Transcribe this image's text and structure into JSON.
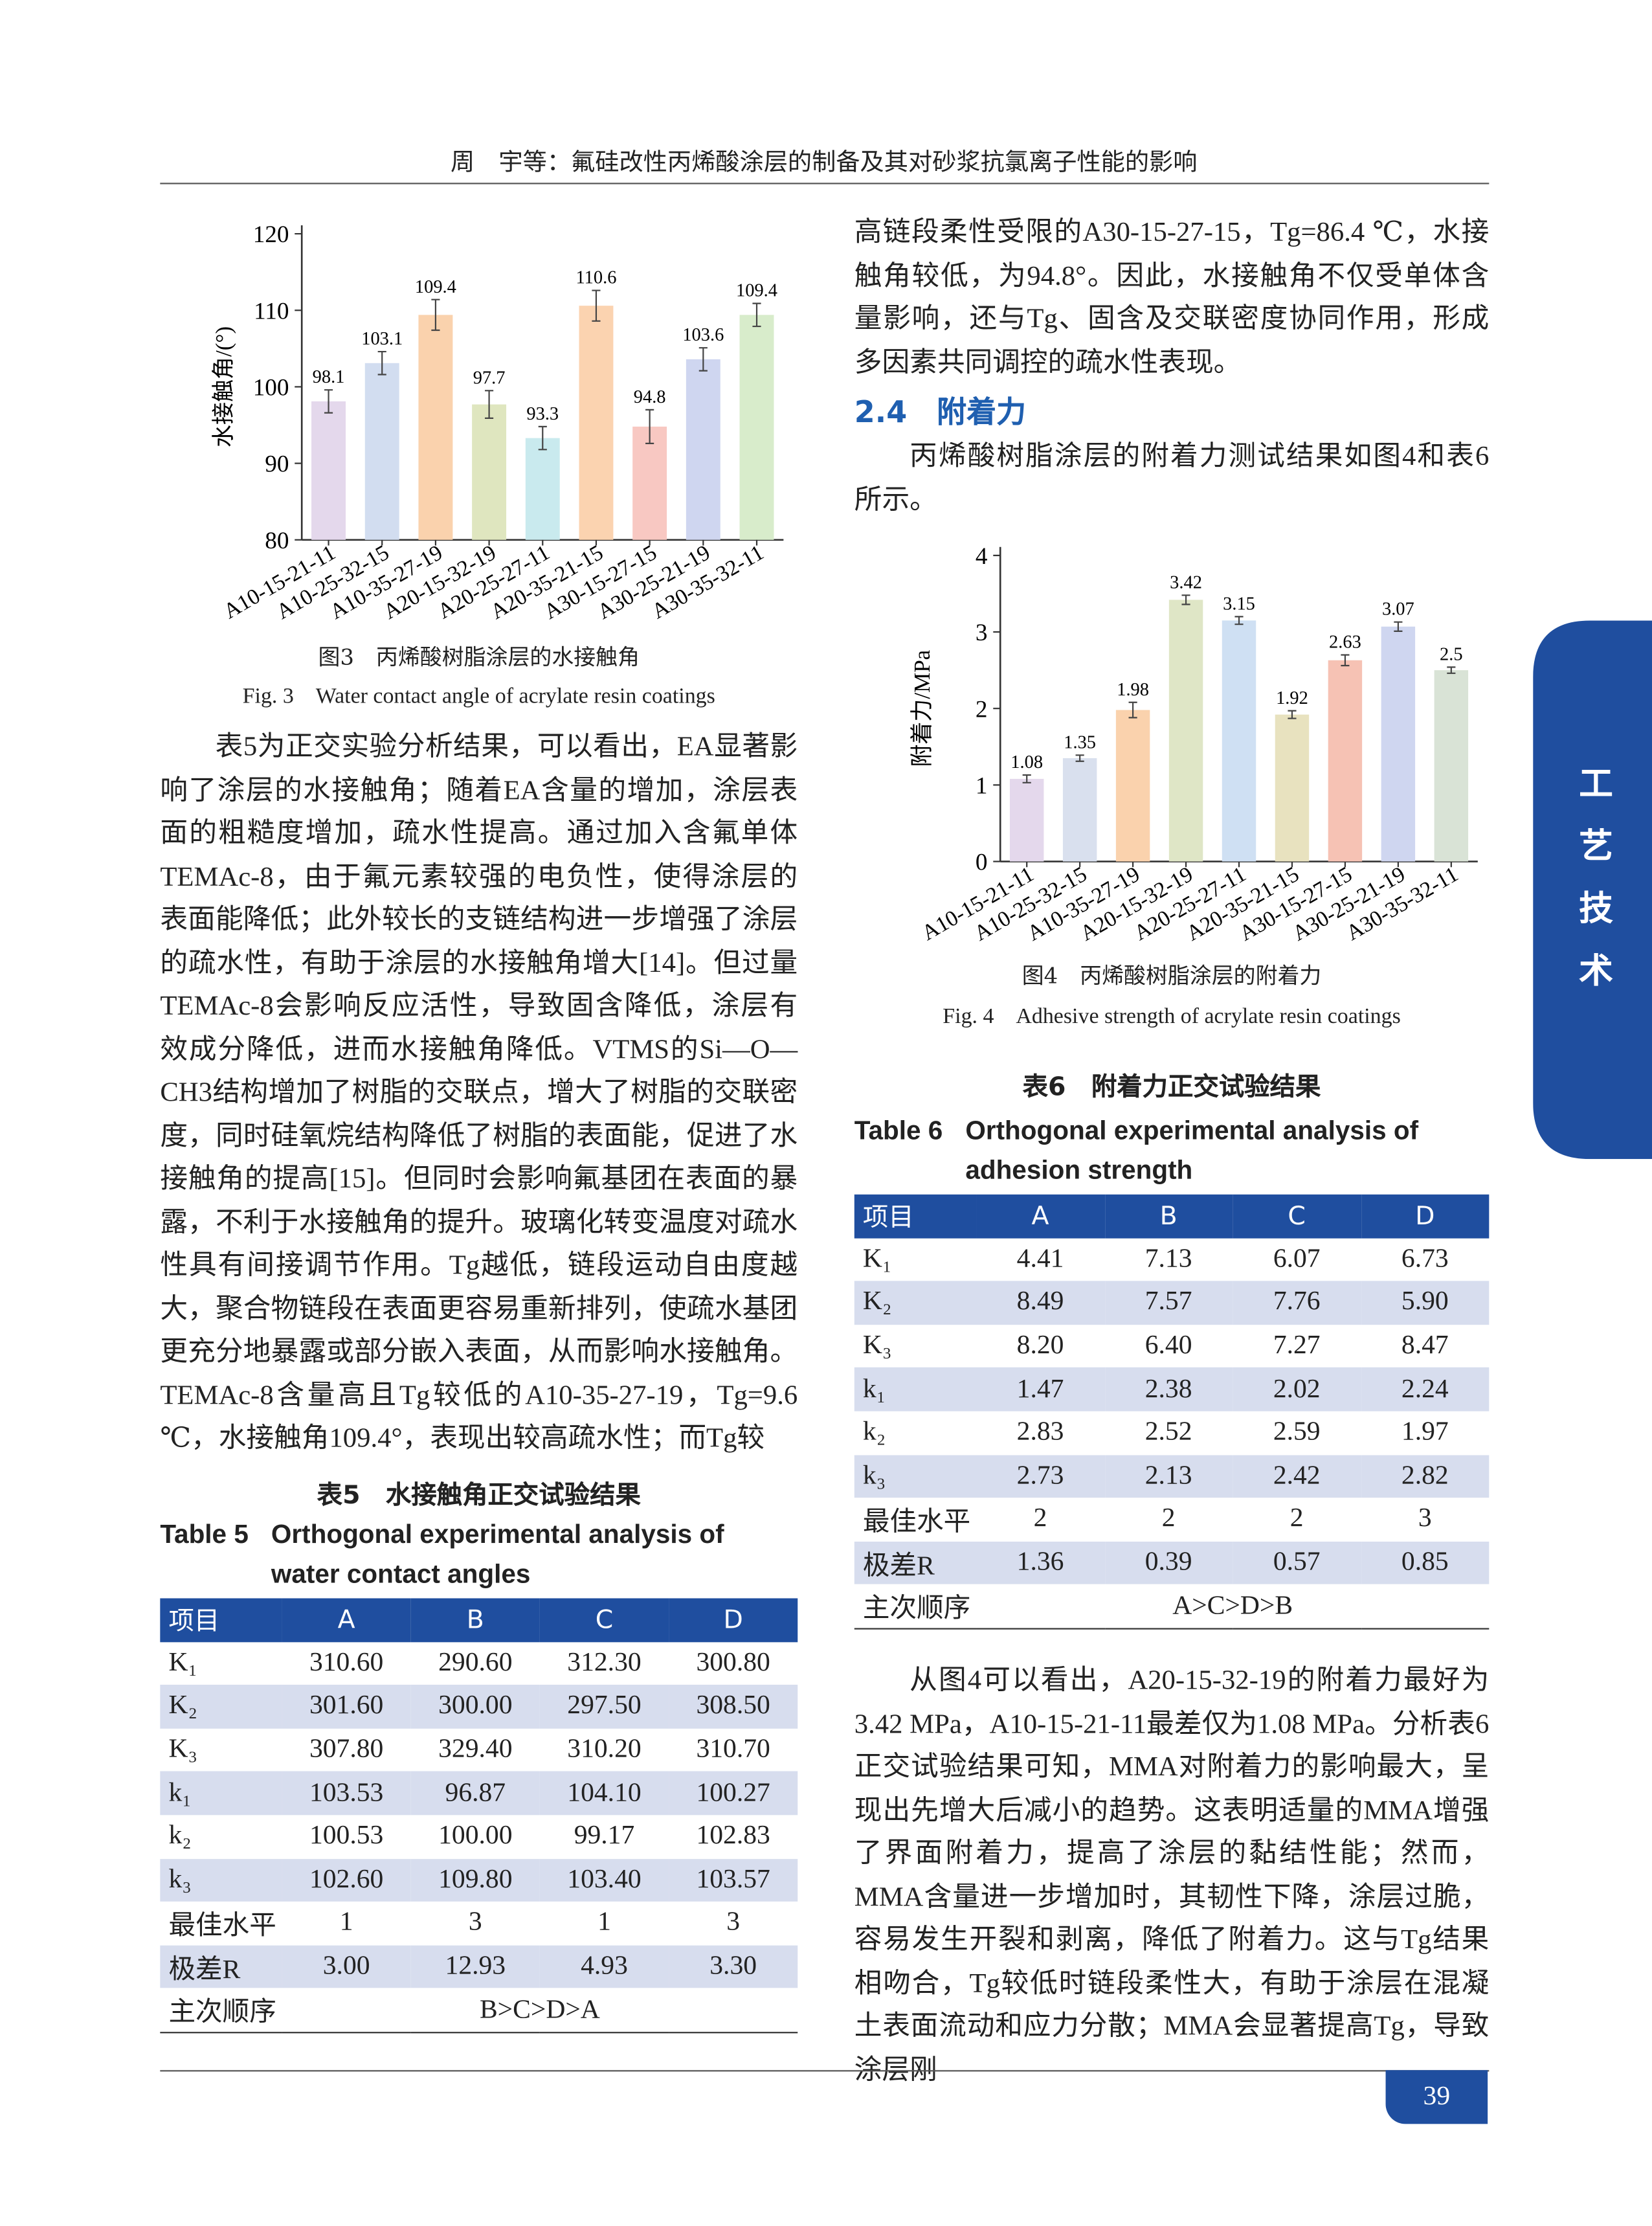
{
  "header": {
    "running_title": "周　宇等：氟硅改性丙烯酸涂层的制备及其对砂浆抗氯离子性能的影响",
    "page_number": "39",
    "side_tab": "工艺技术"
  },
  "chart_data": [
    {
      "type": "bar",
      "y_label": "水接触角/(°)",
      "caption_cn": "图3　丙烯酸树脂涂层的水接触角",
      "caption_en": "Fig. 3　Water contact angle of acrylate resin coatings",
      "categories": [
        "A10-15-21-11",
        "A10-25-32-15",
        "A10-35-27-19",
        "A20-15-32-19",
        "A20-25-27-11",
        "A20-35-21-15",
        "A30-15-27-15",
        "A30-25-21-19",
        "A30-35-32-11"
      ],
      "values": [
        98.1,
        103.1,
        109.4,
        97.7,
        93.3,
        110.6,
        94.8,
        103.6,
        109.4
      ],
      "errors": [
        1.5,
        1.5,
        2.0,
        1.8,
        1.5,
        2.0,
        2.2,
        1.5,
        1.5
      ],
      "colors": [
        "#e4d8ec",
        "#d2ddf0",
        "#fad2ad",
        "#dfe6bf",
        "#c9eaee",
        "#fbd3b0",
        "#f8c8c2",
        "#cfd6f0",
        "#d8eccb"
      ],
      "ylim": [
        80,
        120
      ],
      "yticks": [
        80,
        90,
        100,
        110,
        120
      ],
      "grid": false
    },
    {
      "type": "bar",
      "y_label": "附着力/MPa",
      "caption_cn": "图4　丙烯酸树脂涂层的附着力",
      "caption_en": "Fig. 4　Adhesive strength of acrylate resin coatings",
      "categories": [
        "A10-15-21-11",
        "A10-25-32-15",
        "A10-35-27-19",
        "A20-15-32-19",
        "A20-25-27-11",
        "A20-35-21-15",
        "A30-15-27-15",
        "A30-25-21-19",
        "A30-35-32-11"
      ],
      "values": [
        1.08,
        1.35,
        1.98,
        3.42,
        3.15,
        1.92,
        2.63,
        3.07,
        2.5
      ],
      "errors": [
        0.05,
        0.04,
        0.1,
        0.06,
        0.05,
        0.05,
        0.07,
        0.06,
        0.04
      ],
      "colors": [
        "#e4d8ec",
        "#d9e0ee",
        "#fad2ad",
        "#dfe6c6",
        "#cfe0f3",
        "#e8e2bf",
        "#f6c2b4",
        "#cfd6f0",
        "#d9e3d6"
      ],
      "ylim": [
        0,
        4
      ],
      "yticks": [
        0,
        1,
        2,
        3,
        4
      ],
      "grid": false
    }
  ],
  "body": {
    "left_paragraph": "表5为正交实验分析结果，可以看出，EA显著影响了涂层的水接触角；随着EA含量的增加，涂层表面的粗糙度增加，疏水性提高。通过加入含氟单体TEMAc-8，由于氟元素较强的电负性，使得涂层的表面能降低；此外较长的支链结构进一步增强了涂层的疏水性，有助于涂层的水接触角增大[14]。但过量TEMAc-8会影响反应活性，导致固含降低，涂层有效成分降低，进而水接触角降低。VTMS的Si—O—CH3结构增加了树脂的交联点，增大了树脂的交联密度，同时硅氧烷结构降低了树脂的表面能，促进了水接触角的提高[15]。但同时会影响氟基团在表面的暴露，不利于水接触角的提升。玻璃化转变温度对疏水性具有间接调节作用。Tg越低，链段运动自由度越大，聚合物链段在表面更容易重新排列，使疏水基团更充分地暴露或部分嵌入表面，从而影响水接触角。TEMAc-8含量高且Tg较低的A10-35-27-19，Tg=9.6 ℃，水接触角109.4°，表现出较高疏水性；而Tg较",
    "right_paragraph_top": "高链段柔性受限的A30-15-27-15，Tg=86.4 ℃，水接触角较低，为94.8°。因此，水接触角不仅受单体含量影响，还与Tg、固含及交联密度协同作用，形成多因素共同调控的疏水性表现。",
    "section_heading": "2.4　附着力",
    "section_paragraph": "丙烯酸树脂涂层的附着力测试结果如图4和表6所示。",
    "right_paragraph_bottom": "从图4可以看出，A20-15-32-19的附着力最好为3.42 MPa，A10-15-21-11最差仅为1.08 MPa。分析表6正交试验结果可知，MMA对附着力的影响最大，呈现出先增大后减小的趋势。这表明适量的MMA增强了界面附着力，提高了涂层的黏结性能；然而，MMA含量进一步增加时，其韧性下降，涂层过脆，容易发生开裂和剥离，降低了附着力。这与Tg结果相吻合，Tg较低时链段柔性大，有助于涂层在混凝土表面流动和应力分散；MMA会显著提高Tg，导致涂层刚"
  },
  "tables": [
    {
      "title_cn": "表5　水接触角正交试验结果",
      "title_en_label": "Table 5",
      "title_en": "Orthogonal experimental analysis of water contact angles",
      "header": [
        "项目",
        "A",
        "B",
        "C",
        "D"
      ],
      "rows": [
        [
          "K₁",
          "310.60",
          "290.60",
          "312.30",
          "300.80"
        ],
        [
          "K₂",
          "301.60",
          "300.00",
          "297.50",
          "308.50"
        ],
        [
          "K₃",
          "307.80",
          "329.40",
          "310.20",
          "310.70"
        ],
        [
          "k₁",
          "103.53",
          "96.87",
          "104.10",
          "100.27"
        ],
        [
          "k₂",
          "100.53",
          "100.00",
          "99.17",
          "102.83"
        ],
        [
          "k₃",
          "102.60",
          "109.80",
          "103.40",
          "103.57"
        ],
        [
          "最佳水平",
          "1",
          "3",
          "1",
          "3"
        ],
        [
          "极差R",
          "3.00",
          "12.93",
          "4.93",
          "3.30"
        ],
        [
          "主次顺序",
          "B>C>D>A"
        ]
      ]
    },
    {
      "title_cn": "表6　附着力正交试验结果",
      "title_en_label": "Table 6",
      "title_en": "Orthogonal experimental analysis of adhesion strength",
      "header": [
        "项目",
        "A",
        "B",
        "C",
        "D"
      ],
      "rows": [
        [
          "K₁",
          "4.41",
          "7.13",
          "6.07",
          "6.73"
        ],
        [
          "K₂",
          "8.49",
          "7.57",
          "7.76",
          "5.90"
        ],
        [
          "K₃",
          "8.20",
          "6.40",
          "7.27",
          "8.47"
        ],
        [
          "k₁",
          "1.47",
          "2.38",
          "2.02",
          "2.24"
        ],
        [
          "k₂",
          "2.83",
          "2.52",
          "2.59",
          "1.97"
        ],
        [
          "k₃",
          "2.73",
          "2.13",
          "2.42",
          "2.82"
        ],
        [
          "最佳水平",
          "2",
          "2",
          "2",
          "3"
        ],
        [
          "极差R",
          "1.36",
          "0.39",
          "0.57",
          "0.85"
        ],
        [
          "主次顺序",
          "A>C>D>B"
        ]
      ]
    }
  ]
}
